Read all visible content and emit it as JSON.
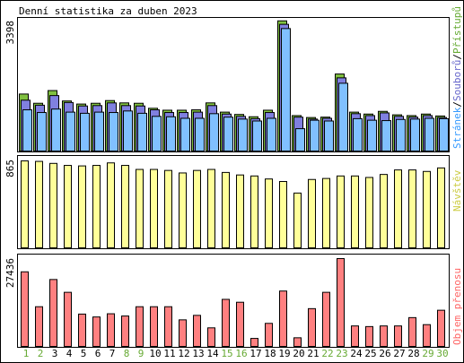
{
  "title": "Denní statistika za duben 2023",
  "chart_data": [
    {
      "type": "bar",
      "panel": "traffic",
      "ymax_label": "3398",
      "ylim": [
        0,
        3398
      ],
      "legend": {
        "label1": "Přístupů",
        "color1": "#66aa33",
        "sep1": "/",
        "label2": "Souborů",
        "color2": "#6666cc",
        "sep2": "/",
        "label3": "Stránek",
        "color3": "#3399ff",
        "sep_color": "#000000"
      },
      "series": [
        {
          "name": "Přístupů",
          "fill": "#80c040",
          "values": [
            1480,
            1240,
            1570,
            1300,
            1220,
            1240,
            1310,
            1250,
            1240,
            1110,
            1060,
            1060,
            1070,
            1250,
            1010,
            950,
            890,
            1060,
            3380,
            920,
            870,
            880,
            2000,
            1010,
            960,
            1030,
            940,
            920,
            960,
            910
          ]
        },
        {
          "name": "Souborů",
          "fill": "#8080e0",
          "values": [
            1320,
            1190,
            1440,
            1260,
            1170,
            1180,
            1250,
            1180,
            1170,
            1070,
            1000,
            1000,
            1010,
            1180,
            960,
            900,
            840,
            1000,
            3290,
            880,
            830,
            850,
            1900,
            970,
            920,
            990,
            900,
            880,
            920,
            870
          ]
        },
        {
          "name": "Stránek",
          "fill": "#80c0ff",
          "values": [
            1070,
            1000,
            1090,
            1010,
            980,
            1010,
            1000,
            1040,
            980,
            900,
            890,
            850,
            850,
            970,
            880,
            830,
            780,
            850,
            3180,
            580,
            800,
            780,
            1760,
            840,
            800,
            790,
            820,
            830,
            850,
            840
          ]
        }
      ]
    },
    {
      "type": "bar",
      "panel": "visits",
      "ymax_label": "865",
      "ylim": [
        0,
        865
      ],
      "legend": {
        "label": "Návštěv",
        "color": "#cccc44"
      },
      "series": [
        {
          "name": "Návštěv",
          "fill": "#ffff99",
          "values": [
            865,
            860,
            840,
            820,
            815,
            820,
            845,
            820,
            780,
            780,
            770,
            745,
            770,
            780,
            750,
            725,
            715,
            685,
            660,
            545,
            680,
            690,
            715,
            715,
            700,
            730,
            775,
            775,
            760,
            795
          ]
        }
      ]
    },
    {
      "type": "bar",
      "panel": "transfer",
      "ymax_label": "27436",
      "ylim": [
        0,
        27436
      ],
      "legend": {
        "label": "Objem přenosu",
        "color": "#ff6666"
      },
      "series": [
        {
          "name": "Objem přenosu",
          "fill": "#ff8080",
          "values": [
            23300,
            12400,
            20900,
            16900,
            10100,
            9200,
            10200,
            9500,
            12400,
            12400,
            12400,
            8300,
            9700,
            5800,
            14700,
            13800,
            2500,
            7200,
            17300,
            2700,
            11800,
            16900,
            27436,
            6400,
            6200,
            6400,
            6400,
            9000,
            6800,
            11300
          ]
        }
      ]
    }
  ],
  "days": [
    "1",
    "2",
    "3",
    "4",
    "5",
    "6",
    "7",
    "8",
    "9",
    "10",
    "11",
    "12",
    "13",
    "14",
    "15",
    "16",
    "17",
    "18",
    "19",
    "20",
    "21",
    "22",
    "23",
    "24",
    "25",
    "26",
    "27",
    "28",
    "29",
    "30"
  ],
  "day_colors": [
    "#66aa33",
    "#66aa33",
    "#000000",
    "#000000",
    "#000000",
    "#000000",
    "#000000",
    "#66aa33",
    "#66aa33",
    "#000000",
    "#000000",
    "#000000",
    "#000000",
    "#000000",
    "#66aa33",
    "#66aa33",
    "#000000",
    "#000000",
    "#000000",
    "#000000",
    "#000000",
    "#66aa33",
    "#66aa33",
    "#000000",
    "#000000",
    "#000000",
    "#000000",
    "#000000",
    "#66aa33",
    "#66aa33"
  ]
}
